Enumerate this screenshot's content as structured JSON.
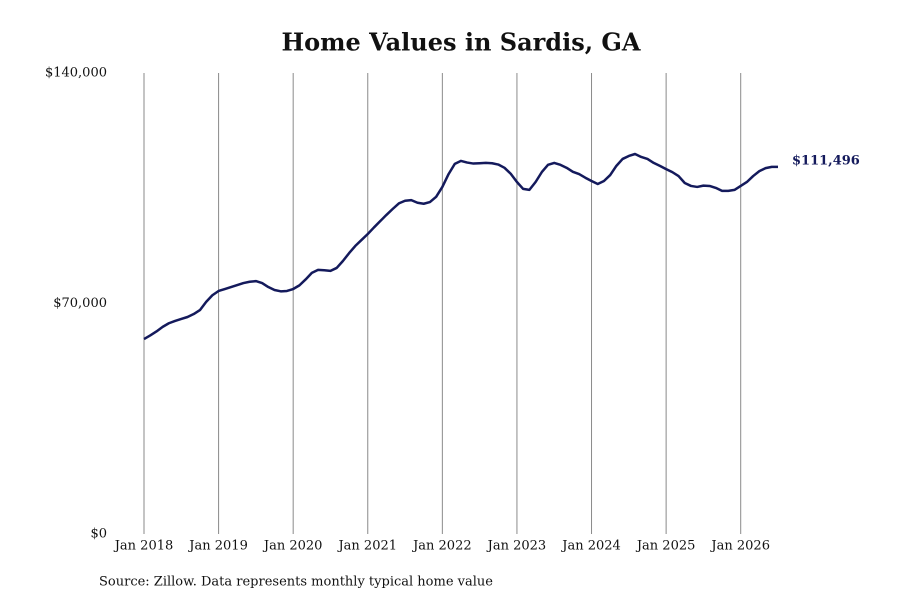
{
  "chart_data": {
    "type": "line",
    "title": "Home Values in Sardis, GA",
    "source": "Source: Zillow. Data represents monthly typical home value",
    "x": [
      "2018-01",
      "2018-02",
      "2018-03",
      "2018-04",
      "2018-05",
      "2018-06",
      "2018-07",
      "2018-08",
      "2018-09",
      "2018-10",
      "2018-11",
      "2018-12",
      "2019-01",
      "2019-02",
      "2019-03",
      "2019-04",
      "2019-05",
      "2019-06",
      "2019-07",
      "2019-08",
      "2019-09",
      "2019-10",
      "2019-11",
      "2019-12",
      "2020-01",
      "2020-02",
      "2020-03",
      "2020-04",
      "2020-05",
      "2020-06",
      "2020-07",
      "2020-08",
      "2020-09",
      "2020-10",
      "2020-11",
      "2020-12",
      "2021-01",
      "2021-02",
      "2021-03",
      "2021-04",
      "2021-05",
      "2021-06",
      "2021-07",
      "2021-08",
      "2021-09",
      "2021-10",
      "2021-11",
      "2021-12",
      "2022-01",
      "2022-02",
      "2022-03",
      "2022-04",
      "2022-05",
      "2022-06",
      "2022-07",
      "2022-08",
      "2022-09",
      "2022-10",
      "2022-11",
      "2022-12",
      "2023-01",
      "2023-02",
      "2023-03",
      "2023-04",
      "2023-05",
      "2023-06",
      "2023-07",
      "2023-08",
      "2023-09",
      "2023-10",
      "2023-11",
      "2023-12",
      "2024-01",
      "2024-02",
      "2024-03",
      "2024-04",
      "2024-05",
      "2024-06",
      "2024-07",
      "2024-08",
      "2024-09",
      "2024-10",
      "2024-11",
      "2024-12",
      "2025-01",
      "2025-02",
      "2025-03",
      "2025-04",
      "2025-05",
      "2025-06",
      "2025-07",
      "2025-08",
      "2025-09",
      "2025-10",
      "2025-11",
      "2025-12",
      "2026-01",
      "2026-02",
      "2026-03",
      "2026-04",
      "2026-05",
      "2026-06",
      "2026-07"
    ],
    "series": [
      {
        "name": "Home value",
        "color": "#141a5c",
        "values": [
          59200,
          60300,
          61500,
          62900,
          64000,
          64700,
          65300,
          65900,
          66800,
          68000,
          70500,
          72500,
          73800,
          74400,
          75000,
          75600,
          76200,
          76600,
          76800,
          76200,
          75000,
          74100,
          73700,
          73800,
          74400,
          75500,
          77300,
          79300,
          80200,
          80100,
          79900,
          80800,
          82900,
          85300,
          87500,
          89300,
          91100,
          93100,
          95000,
          96900,
          98700,
          100400,
          101200,
          101400,
          100600,
          100300,
          100800,
          102400,
          105400,
          109300,
          112400,
          113300,
          112800,
          112500,
          112600,
          112700,
          112600,
          112200,
          111200,
          109400,
          106900,
          104800,
          104500,
          106900,
          109900,
          112100,
          112700,
          112100,
          111200,
          110000,
          109300,
          108200,
          107200,
          106300,
          107200,
          109000,
          111800,
          113900,
          114800,
          115400,
          114500,
          113900,
          112700,
          111800,
          110800,
          109900,
          108700,
          106600,
          105700,
          105400,
          105800,
          105700,
          105100,
          104200,
          104200,
          104500,
          105700,
          106900,
          108700,
          110200,
          111100,
          111500,
          111496
        ],
        "value_labels": [
          null,
          null,
          null,
          null,
          null,
          null,
          null,
          null,
          null,
          null,
          null,
          null,
          null,
          null,
          null,
          null,
          null,
          null,
          null,
          null,
          null,
          null,
          null,
          null,
          null,
          null,
          null,
          null,
          null,
          null,
          null,
          null,
          null,
          null,
          null,
          null,
          null,
          null,
          null,
          null,
          null,
          null,
          null,
          null,
          null,
          null,
          null,
          null,
          null,
          null,
          null,
          null,
          null,
          null,
          null,
          null,
          null,
          null,
          null,
          null,
          null,
          null,
          null,
          null,
          null,
          null,
          null,
          null,
          null,
          null,
          null,
          null,
          null,
          null,
          null,
          null,
          null,
          null,
          null,
          null,
          null,
          null,
          null,
          null,
          null,
          null,
          null,
          null,
          null,
          null,
          null,
          null,
          null,
          null,
          null,
          null,
          null,
          null,
          null,
          null,
          null,
          null,
          "$111,496"
        ]
      }
    ],
    "xlim": [
      "2018-01",
      "2026-07"
    ],
    "xticks": [
      {
        "value": "2018-01",
        "label": "Jan 2018"
      },
      {
        "value": "2019-01",
        "label": "Jan 2019"
      },
      {
        "value": "2020-01",
        "label": "Jan 2020"
      },
      {
        "value": "2021-01",
        "label": "Jan 2021"
      },
      {
        "value": "2022-01",
        "label": "Jan 2022"
      },
      {
        "value": "2023-01",
        "label": "Jan 2023"
      },
      {
        "value": "2024-01",
        "label": "Jan 2024"
      },
      {
        "value": "2025-01",
        "label": "Jan 2025"
      },
      {
        "value": "2026-01",
        "label": "Jan 2026"
      }
    ],
    "ylim": [
      0,
      140000
    ],
    "yticks": [
      {
        "value": 0,
        "label": "$0"
      },
      {
        "value": 70000,
        "label": "$70,000"
      },
      {
        "value": 140000,
        "label": "$140,000"
      }
    ],
    "grid": "x"
  }
}
